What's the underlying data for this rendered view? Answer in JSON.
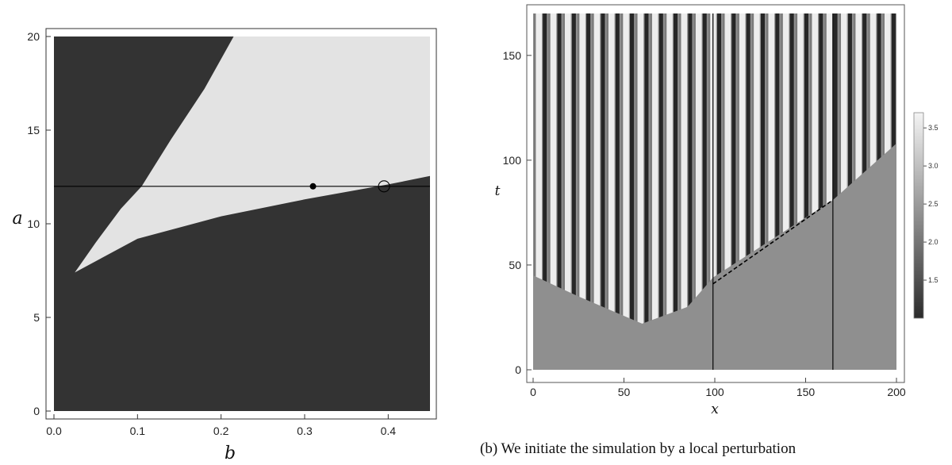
{
  "chart_data": [
    {
      "type": "phase-diagram",
      "title": "",
      "xlabel": "b",
      "ylabel": "a",
      "xlim": [
        0.0,
        0.45
      ],
      "ylim": [
        0,
        20
      ],
      "xticks": [
        "0.0",
        "0.1",
        "0.2",
        "0.3",
        "0.4"
      ],
      "yticks": [
        "0",
        "5",
        "10",
        "15",
        "20"
      ],
      "region_colors": {
        "outside": "#333333",
        "inside": "#e3e3e3"
      },
      "wedge_region": {
        "tip": [
          0.025,
          7.4
        ],
        "lower_boundary": [
          [
            0.025,
            7.4
          ],
          [
            0.1,
            9.2
          ],
          [
            0.2,
            10.4
          ],
          [
            0.3,
            11.3
          ],
          [
            0.4,
            12.1
          ],
          [
            0.45,
            12.55
          ]
        ],
        "upper_boundary": [
          [
            0.025,
            7.4
          ],
          [
            0.05,
            9.0
          ],
          [
            0.08,
            10.8
          ],
          [
            0.105,
            12.0
          ],
          [
            0.14,
            14.5
          ],
          [
            0.18,
            17.2
          ],
          [
            0.215,
            20.0
          ]
        ]
      },
      "horizontal_line_a": 12,
      "markers": [
        {
          "type": "filled-circle",
          "b": 0.31,
          "a": 12
        },
        {
          "type": "open-circle",
          "b": 0.395,
          "a": 12
        }
      ]
    },
    {
      "type": "heatmap",
      "title": "",
      "xlabel": "x",
      "ylabel": "t",
      "xlim": [
        0,
        200
      ],
      "ylim": [
        0,
        170
      ],
      "xticks": [
        "0",
        "50",
        "100",
        "150",
        "200"
      ],
      "yticks": [
        "0",
        "50",
        "100",
        "150"
      ],
      "colorbar": {
        "min": 1.0,
        "max": 3.7,
        "ticks": [
          "1.5",
          "2.0",
          "2.5",
          "3.0",
          "3.5"
        ]
      },
      "vertical_lines_x": [
        99,
        165
      ],
      "dashed_front": [
        [
          99,
          41
        ],
        [
          165,
          81
        ]
      ],
      "stripe_count": 25,
      "uniform_level": 2.35,
      "pattern_onset_t": [
        [
          0,
          45
        ],
        [
          25,
          35
        ],
        [
          60,
          22
        ],
        [
          85,
          30
        ],
        [
          99,
          44
        ],
        [
          165,
          81
        ],
        [
          200,
          108
        ]
      ]
    }
  ],
  "caption": "(b) We initiate the simulation by a local perturbation"
}
